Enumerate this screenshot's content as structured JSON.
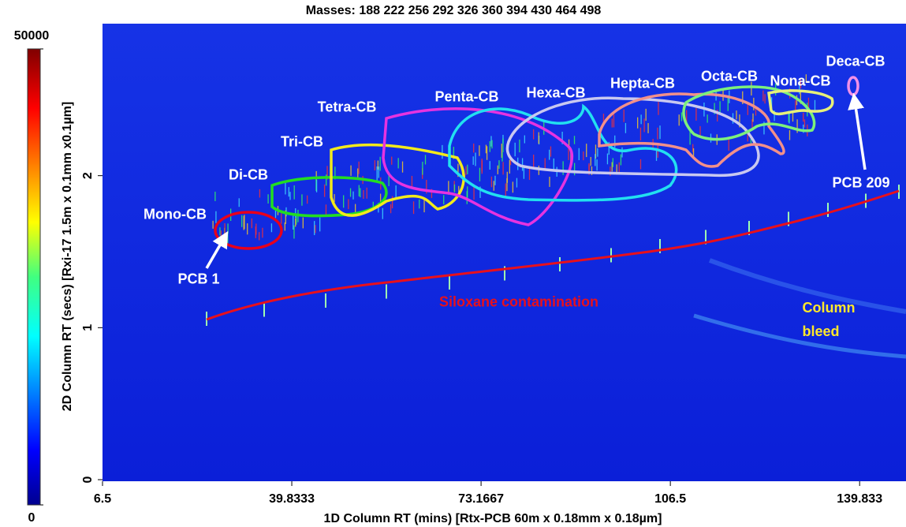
{
  "chart_data": {
    "type": "contour",
    "title": "Masses:  188 222 256 292 326 360 394 430 464 498",
    "x_label": "1D Column RT (mins) [Rtx-PCB 60m x 0.18mm x 0.18µm]",
    "y_label": "2D Column RT (secs) [Rxi-17 1.5m x 0.1mm x0.1µm]",
    "xlim": [
      6.5,
      148
    ],
    "xticks": [
      6.5,
      39.8333,
      73.1667,
      106.5,
      139.833
    ],
    "ylim": [
      0,
      3
    ],
    "yticks": [
      0,
      1,
      2
    ],
    "colorbar": {
      "lim": [
        0,
        50000
      ],
      "ticks": [
        0,
        50000
      ]
    },
    "annotations": [
      "Mono-CB",
      "Di-CB",
      "Tri-CB",
      "Tetra-CB",
      "Penta-CB",
      "Hexa-CB",
      "Hepta-CB",
      "Octa-CB",
      "Nona-CB",
      "Deca-CB",
      "PCB 1",
      "PCB 209",
      "Siloxane contamination",
      "Column bleed"
    ]
  }
}
